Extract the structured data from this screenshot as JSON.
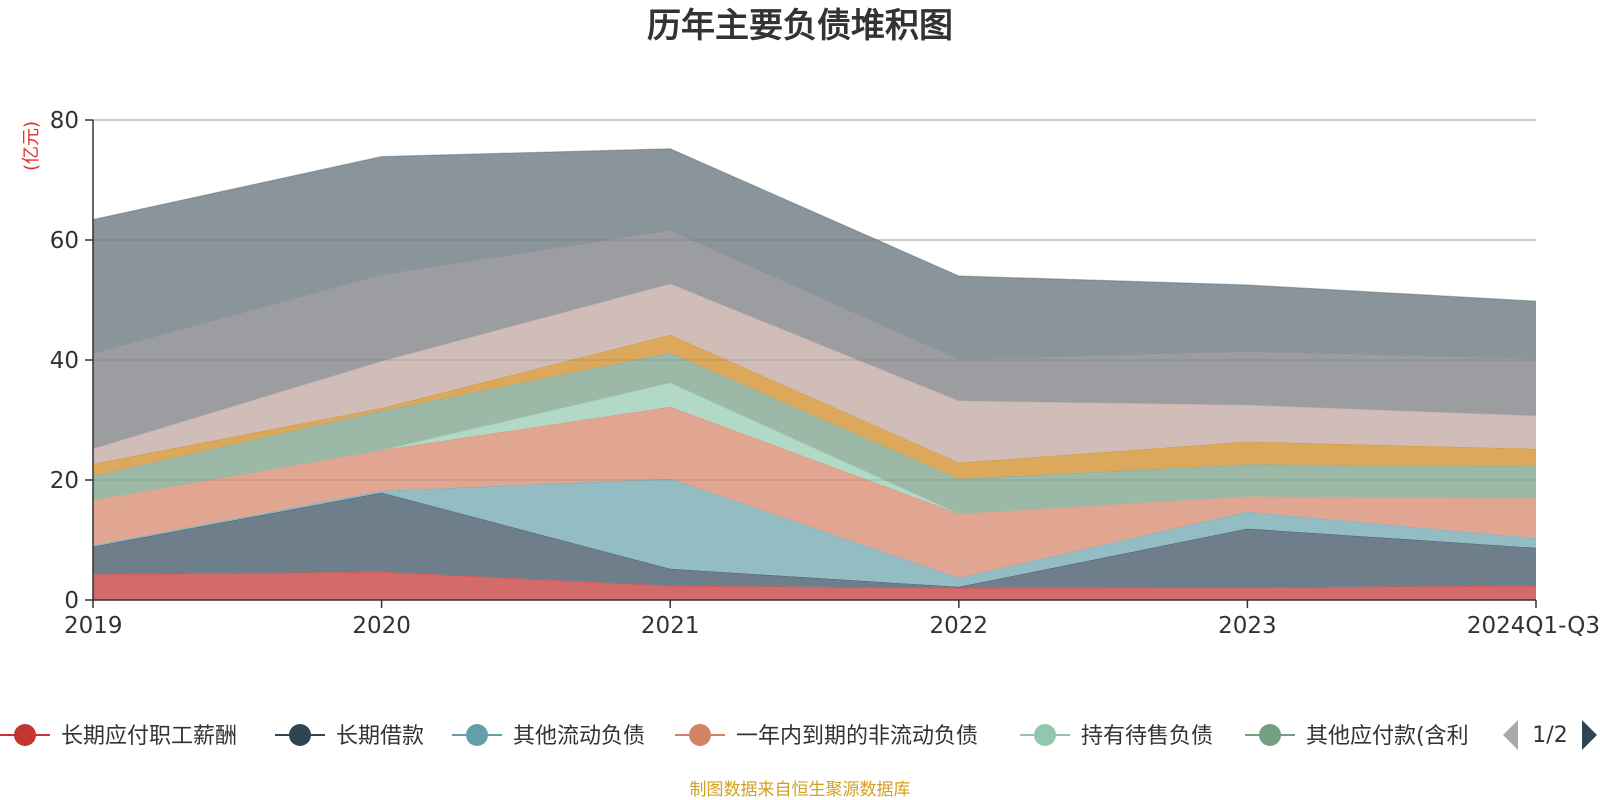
{
  "chart_data": {
    "type": "area",
    "stacked": true,
    "title": "历年主要负债堆积图",
    "ylabel": "(亿元)",
    "xlabel": "",
    "ylim": [
      0,
      80
    ],
    "yticks": [
      0,
      20,
      40,
      60,
      80
    ],
    "categories": [
      "2019",
      "2020",
      "2021",
      "2022",
      "2023",
      "2024Q1-Q3"
    ],
    "grid": true,
    "legend_position": "bottom",
    "series": [
      {
        "name": "长期应付职工薪酬",
        "color": "#d46b6b",
        "legend_color": "#c23531",
        "values": [
          4.3,
          4.7,
          2.4,
          2.0,
          2.1,
          2.4
        ]
      },
      {
        "name": "长期借款",
        "color": "#6e7f8b",
        "legend_color": "#2f4554",
        "values": [
          4.6,
          13.2,
          2.8,
          0.2,
          9.8,
          6.3
        ]
      },
      {
        "name": "其他流动负债",
        "color": "#93bdc3",
        "legend_color": "#61a0a8",
        "values": [
          0.2,
          0.3,
          15.0,
          1.5,
          2.8,
          1.6
        ]
      },
      {
        "name": "一年内到期的非流动负债",
        "color": "#e0a691",
        "legend_color": "#d48265",
        "values": [
          7.6,
          6.8,
          12.0,
          10.7,
          2.6,
          6.7
        ]
      },
      {
        "name": "持有待售负债",
        "color": "#b2d9c6",
        "legend_color": "#91c7ae",
        "values": [
          0.0,
          0.0,
          4.0,
          0.0,
          0.0,
          0.0
        ]
      },
      {
        "name": "其他应付款(含利",
        "color": "#9cb8a6",
        "legend_color": "#749f83",
        "values": [
          4.0,
          6.5,
          5.0,
          5.8,
          5.3,
          5.3
        ]
      },
      {
        "name": "",
        "color": "#dca85c",
        "legend_color": "#ca8622",
        "values": [
          2.0,
          0.5,
          3.0,
          2.7,
          3.8,
          2.9
        ]
      },
      {
        "name": "",
        "color": "#d0bdb8",
        "legend_color": "#bda29a",
        "values": [
          2.5,
          7.8,
          8.5,
          10.3,
          6.1,
          5.5
        ]
      },
      {
        "name": "",
        "color": "#9b9da1",
        "legend_color": "#6e7074",
        "values": [
          16.0,
          14.5,
          9.0,
          7.0,
          9.0,
          9.6
        ]
      },
      {
        "name": "",
        "color": "#8a949b",
        "legend_color": "#546570",
        "values": [
          22.2,
          19.6,
          13.5,
          13.8,
          11.0,
          9.5
        ]
      }
    ]
  },
  "legend": {
    "items": [
      "长期应付职工薪酬",
      "长期借款",
      "其他流动负债",
      "一年内到期的非流动负债",
      "持有待售负债",
      "其他应付款(含利"
    ],
    "page": "1/2"
  },
  "footer": {
    "source": "制图数据来自恒生聚源数据库"
  }
}
